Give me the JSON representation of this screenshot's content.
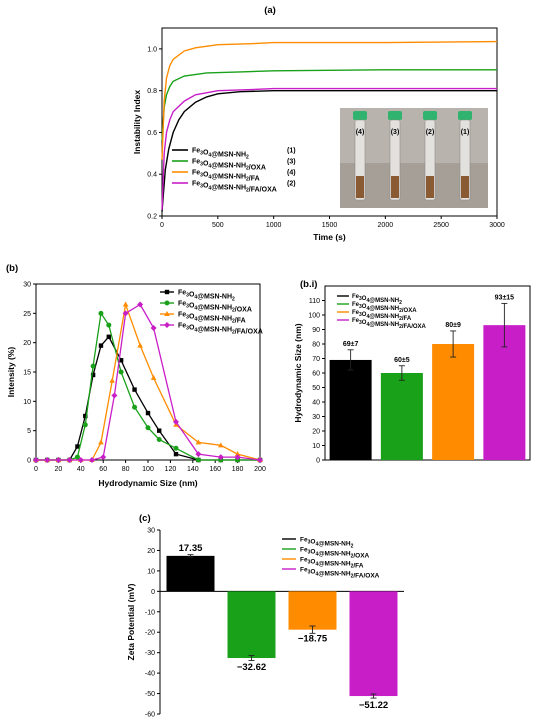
{
  "chart_data": [
    {
      "id": "a",
      "panel_label": "(a)",
      "type": "line",
      "xlabel": "Time (s)",
      "ylabel": "Instability Index",
      "xlim": [
        0,
        3000
      ],
      "ylim": [
        0.2,
        1.1
      ],
      "xticks": [
        0,
        500,
        1000,
        1500,
        2000,
        2500,
        3000
      ],
      "yticks": [
        0.2,
        0.4,
        0.6,
        0.8,
        1.0
      ],
      "legend_position": "bottom-left",
      "series": [
        {
          "name": "Fe3O4@MSN-NH2",
          "tag": "(1)",
          "color": "#000000",
          "points": [
            [
              0,
              0.22
            ],
            [
              30,
              0.42
            ],
            [
              60,
              0.52
            ],
            [
              100,
              0.6
            ],
            [
              150,
              0.66
            ],
            [
              200,
              0.7
            ],
            [
              300,
              0.745
            ],
            [
              400,
              0.77
            ],
            [
              500,
              0.785
            ],
            [
              700,
              0.795
            ],
            [
              1000,
              0.8
            ],
            [
              1500,
              0.8
            ],
            [
              2000,
              0.8
            ],
            [
              2500,
              0.8
            ],
            [
              3000,
              0.8
            ]
          ]
        },
        {
          "name": "Fe3O4@MSN-NH2/OXA",
          "tag": "(3)",
          "color": "#1aa11a",
          "points": [
            [
              0,
              0.56
            ],
            [
              20,
              0.72
            ],
            [
              40,
              0.78
            ],
            [
              70,
              0.82
            ],
            [
              100,
              0.845
            ],
            [
              200,
              0.87
            ],
            [
              400,
              0.885
            ],
            [
              700,
              0.89
            ],
            [
              1000,
              0.895
            ],
            [
              2000,
              0.9
            ],
            [
              3000,
              0.9
            ]
          ]
        },
        {
          "name": "Fe3O4@MSN-NH2/FA",
          "tag": "(4)",
          "color": "#ff8c00",
          "points": [
            [
              0,
              0.47
            ],
            [
              20,
              0.75
            ],
            [
              40,
              0.86
            ],
            [
              70,
              0.92
            ],
            [
              100,
              0.95
            ],
            [
              200,
              0.99
            ],
            [
              300,
              1.005
            ],
            [
              500,
              1.02
            ],
            [
              800,
              1.025
            ],
            [
              1000,
              1.03
            ],
            [
              2000,
              1.03
            ],
            [
              3000,
              1.035
            ]
          ]
        },
        {
          "name": "Fe3O4@MSN-NH2/FA/OXA",
          "tag": "(2)",
          "color": "#c81ec8",
          "points": [
            [
              0,
              0.23
            ],
            [
              20,
              0.5
            ],
            [
              40,
              0.6
            ],
            [
              70,
              0.66
            ],
            [
              100,
              0.7
            ],
            [
              200,
              0.75
            ],
            [
              300,
              0.78
            ],
            [
              500,
              0.8
            ],
            [
              800,
              0.805
            ],
            [
              1000,
              0.81
            ],
            [
              2000,
              0.81
            ],
            [
              3000,
              0.81
            ]
          ]
        }
      ],
      "vial_labels": [
        "(4)",
        "(3)",
        "(2)",
        "(1)"
      ]
    },
    {
      "id": "b",
      "panel_label": "(b)",
      "type": "line",
      "xlabel": "Hydrodynamic Size (nm)",
      "ylabel": "Intensity (%)",
      "xlim": [
        0,
        200
      ],
      "ylim": [
        0,
        30
      ],
      "xticks": [
        0,
        20,
        40,
        60,
        80,
        100,
        120,
        140,
        160,
        180,
        200
      ],
      "yticks": [
        0,
        5,
        10,
        15,
        20,
        25,
        30
      ],
      "legend_position": "top-right",
      "series": [
        {
          "name": "Fe3O4@MSN-NH2",
          "color": "#000000",
          "marker": "square",
          "points": [
            [
              0,
              0
            ],
            [
              10,
              0
            ],
            [
              20,
              0
            ],
            [
              30,
              0
            ],
            [
              37,
              2.3
            ],
            [
              44,
              7.5
            ],
            [
              51,
              14.5
            ],
            [
              58,
              19.5
            ],
            [
              65,
              21
            ],
            [
              76,
              17
            ],
            [
              88,
              12
            ],
            [
              100,
              8
            ],
            [
              110,
              5
            ],
            [
              125,
              1
            ],
            [
              145,
              0
            ],
            [
              165,
              0
            ],
            [
              180,
              0
            ],
            [
              200,
              0
            ]
          ]
        },
        {
          "name": "Fe3O4@MSN-NH2/OXA",
          "color": "#1aa11a",
          "marker": "circle",
          "points": [
            [
              0,
              0
            ],
            [
              10,
              0
            ],
            [
              20,
              0
            ],
            [
              30,
              0
            ],
            [
              37,
              0.5
            ],
            [
              44,
              6
            ],
            [
              51,
              16
            ],
            [
              58,
              25
            ],
            [
              65,
              23
            ],
            [
              76,
              15
            ],
            [
              88,
              9
            ],
            [
              100,
              5.5
            ],
            [
              110,
              3.5
            ],
            [
              125,
              2
            ],
            [
              145,
              0
            ],
            [
              165,
              0
            ],
            [
              180,
              0
            ],
            [
              200,
              0
            ]
          ]
        },
        {
          "name": "Fe3O4@MSN-NH2/FA",
          "color": "#ff8c00",
          "marker": "triangle",
          "points": [
            [
              0,
              0
            ],
            [
              10,
              0
            ],
            [
              20,
              0
            ],
            [
              30,
              0
            ],
            [
              40,
              0
            ],
            [
              50,
              0
            ],
            [
              58,
              3
            ],
            [
              68,
              13.5
            ],
            [
              80,
              26.5
            ],
            [
              93,
              19.5
            ],
            [
              105,
              14
            ],
            [
              125,
              6
            ],
            [
              145,
              3
            ],
            [
              165,
              2.5
            ],
            [
              180,
              1
            ],
            [
              200,
              0
            ]
          ]
        },
        {
          "name": "Fe3O4@MSN-NH2/FA/OXA",
          "color": "#c81ec8",
          "marker": "diamond",
          "points": [
            [
              0,
              0
            ],
            [
              10,
              0
            ],
            [
              20,
              0
            ],
            [
              30,
              0
            ],
            [
              40,
              0
            ],
            [
              50,
              0
            ],
            [
              60,
              0.5
            ],
            [
              70,
              11
            ],
            [
              80,
              25
            ],
            [
              93,
              26.5
            ],
            [
              105,
              22.5
            ],
            [
              125,
              6.5
            ],
            [
              145,
              1
            ],
            [
              165,
              0.5
            ],
            [
              180,
              0.5
            ],
            [
              200,
              0
            ]
          ]
        }
      ]
    },
    {
      "id": "b.i",
      "panel_label": "(b.i)",
      "type": "bar",
      "ylabel": "Hydrodynamic Size (nm)",
      "ylim": [
        0,
        120
      ],
      "yticks": [
        0,
        10,
        20,
        30,
        40,
        50,
        60,
        70,
        80,
        90,
        100,
        110
      ],
      "legend_position": "top-left",
      "series": [
        {
          "name": "Fe3O4@MSN-NH2",
          "value": 69,
          "error": 7,
          "label": "69±7",
          "color": "#000000"
        },
        {
          "name": "Fe3O4@MSN-NH2/OXA",
          "value": 60,
          "error": 5,
          "label": "60±5",
          "color": "#1aa11a"
        },
        {
          "name": "Fe3O4@MSN-NH2/FA",
          "value": 80,
          "error": 9,
          "label": "80±9",
          "color": "#ff8c00"
        },
        {
          "name": "Fe3O4@MSN-NH2/FA/OXA",
          "value": 93,
          "error": 15,
          "label": "93±15",
          "color": "#c81ec8"
        }
      ]
    },
    {
      "id": "c",
      "panel_label": "(c)",
      "type": "bar",
      "ylabel": "Zeta Potential (mV)",
      "ylim": [
        -60,
        30
      ],
      "yticks": [
        30,
        20,
        10,
        0,
        -10,
        -20,
        -30,
        -40,
        -50,
        -60
      ],
      "legend_position": "top-right",
      "series": [
        {
          "name": "Fe3O4@MSN-NH2",
          "value": 17.35,
          "error": 0.6,
          "label": "17.35",
          "color": "#000000"
        },
        {
          "name": "Fe3O4@MSN-NH2/OXA",
          "value": -32.62,
          "error": 1.2,
          "label": "−32.62",
          "color": "#1aa11a"
        },
        {
          "name": "Fe3O4@MSN-NH2/FA",
          "value": -18.75,
          "error": 1.8,
          "label": "−18.75",
          "color": "#ff8c00"
        },
        {
          "name": "Fe3O4@MSN-NH2/FA/OXA",
          "value": -51.22,
          "error": 1.0,
          "label": "−51.22",
          "color": "#c81ec8"
        }
      ]
    }
  ]
}
